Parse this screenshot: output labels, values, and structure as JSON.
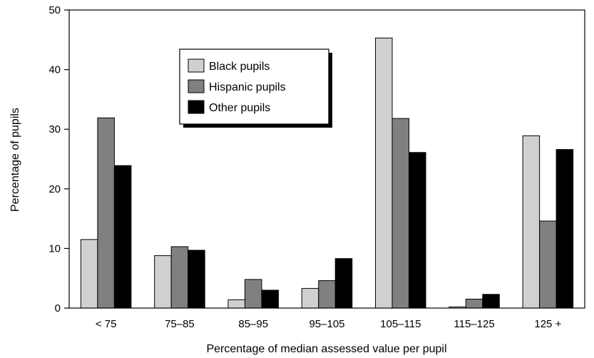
{
  "chart_data": {
    "type": "bar",
    "xlabel": "Percentage of median assessed value per pupil",
    "ylabel": "Percentage of pupils",
    "ylim": [
      0,
      50
    ],
    "yticks": [
      "0",
      "10",
      "20",
      "30",
      "40",
      "50"
    ],
    "grid": false,
    "legend": "upper-center",
    "categories": [
      "< 75",
      "75–85",
      "85–95",
      "95–105",
      "105–115",
      "115–125",
      "125 +"
    ],
    "series": [
      {
        "name": "Black pupils",
        "color": "#d0d0d0",
        "values": [
          11.5,
          8.8,
          1.4,
          3.3,
          45.3,
          0.2,
          28.9
        ]
      },
      {
        "name": "Hispanic pupils",
        "color": "#808080",
        "values": [
          31.9,
          10.3,
          4.8,
          4.6,
          31.8,
          1.5,
          14.6
        ]
      },
      {
        "name": "Other pupils",
        "color": "#000000",
        "values": [
          23.9,
          9.7,
          3.0,
          8.3,
          26.1,
          2.3,
          26.6
        ]
      }
    ]
  }
}
